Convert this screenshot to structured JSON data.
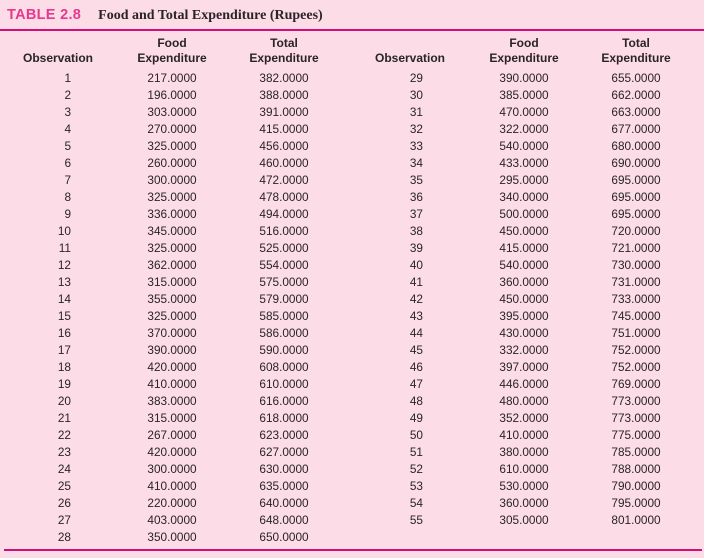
{
  "table": {
    "label": "TABLE 2.8",
    "title": "Food and Total Expenditure (Rupees)",
    "headers": {
      "observation": "Observation",
      "food_line1": "Food",
      "total_line1": "Total",
      "expenditure": "Expenditure"
    },
    "left_rows": [
      [
        "1",
        "217.0000",
        "382.0000"
      ],
      [
        "2",
        "196.0000",
        "388.0000"
      ],
      [
        "3",
        "303.0000",
        "391.0000"
      ],
      [
        "4",
        "270.0000",
        "415.0000"
      ],
      [
        "5",
        "325.0000",
        "456.0000"
      ],
      [
        "6",
        "260.0000",
        "460.0000"
      ],
      [
        "7",
        "300.0000",
        "472.0000"
      ],
      [
        "8",
        "325.0000",
        "478.0000"
      ],
      [
        "9",
        "336.0000",
        "494.0000"
      ],
      [
        "10",
        "345.0000",
        "516.0000"
      ],
      [
        "11",
        "325.0000",
        "525.0000"
      ],
      [
        "12",
        "362.0000",
        "554.0000"
      ],
      [
        "13",
        "315.0000",
        "575.0000"
      ],
      [
        "14",
        "355.0000",
        "579.0000"
      ],
      [
        "15",
        "325.0000",
        "585.0000"
      ],
      [
        "16",
        "370.0000",
        "586.0000"
      ],
      [
        "17",
        "390.0000",
        "590.0000"
      ],
      [
        "18",
        "420.0000",
        "608.0000"
      ],
      [
        "19",
        "410.0000",
        "610.0000"
      ],
      [
        "20",
        "383.0000",
        "616.0000"
      ],
      [
        "21",
        "315.0000",
        "618.0000"
      ],
      [
        "22",
        "267.0000",
        "623.0000"
      ],
      [
        "23",
        "420.0000",
        "627.0000"
      ],
      [
        "24",
        "300.0000",
        "630.0000"
      ],
      [
        "25",
        "410.0000",
        "635.0000"
      ],
      [
        "26",
        "220.0000",
        "640.0000"
      ],
      [
        "27",
        "403.0000",
        "648.0000"
      ],
      [
        "28",
        "350.0000",
        "650.0000"
      ]
    ],
    "right_rows": [
      [
        "29",
        "390.0000",
        "655.0000"
      ],
      [
        "30",
        "385.0000",
        "662.0000"
      ],
      [
        "31",
        "470.0000",
        "663.0000"
      ],
      [
        "32",
        "322.0000",
        "677.0000"
      ],
      [
        "33",
        "540.0000",
        "680.0000"
      ],
      [
        "34",
        "433.0000",
        "690.0000"
      ],
      [
        "35",
        "295.0000",
        "695.0000"
      ],
      [
        "36",
        "340.0000",
        "695.0000"
      ],
      [
        "37",
        "500.0000",
        "695.0000"
      ],
      [
        "38",
        "450.0000",
        "720.0000"
      ],
      [
        "39",
        "415.0000",
        "721.0000"
      ],
      [
        "40",
        "540.0000",
        "730.0000"
      ],
      [
        "41",
        "360.0000",
        "731.0000"
      ],
      [
        "42",
        "450.0000",
        "733.0000"
      ],
      [
        "43",
        "395.0000",
        "745.0000"
      ],
      [
        "44",
        "430.0000",
        "751.0000"
      ],
      [
        "45",
        "332.0000",
        "752.0000"
      ],
      [
        "46",
        "397.0000",
        "752.0000"
      ],
      [
        "47",
        "446.0000",
        "769.0000"
      ],
      [
        "48",
        "480.0000",
        "773.0000"
      ],
      [
        "49",
        "352.0000",
        "773.0000"
      ],
      [
        "50",
        "410.0000",
        "775.0000"
      ],
      [
        "51",
        "380.0000",
        "785.0000"
      ],
      [
        "52",
        "610.0000",
        "788.0000"
      ],
      [
        "53",
        "530.0000",
        "790.0000"
      ],
      [
        "54",
        "360.0000",
        "795.0000"
      ],
      [
        "55",
        "305.0000",
        "801.0000"
      ]
    ]
  },
  "colors": {
    "background": "#fbdce7",
    "accent_label": "#e7378f",
    "rule": "#d40d79",
    "text": "#2a2428"
  }
}
